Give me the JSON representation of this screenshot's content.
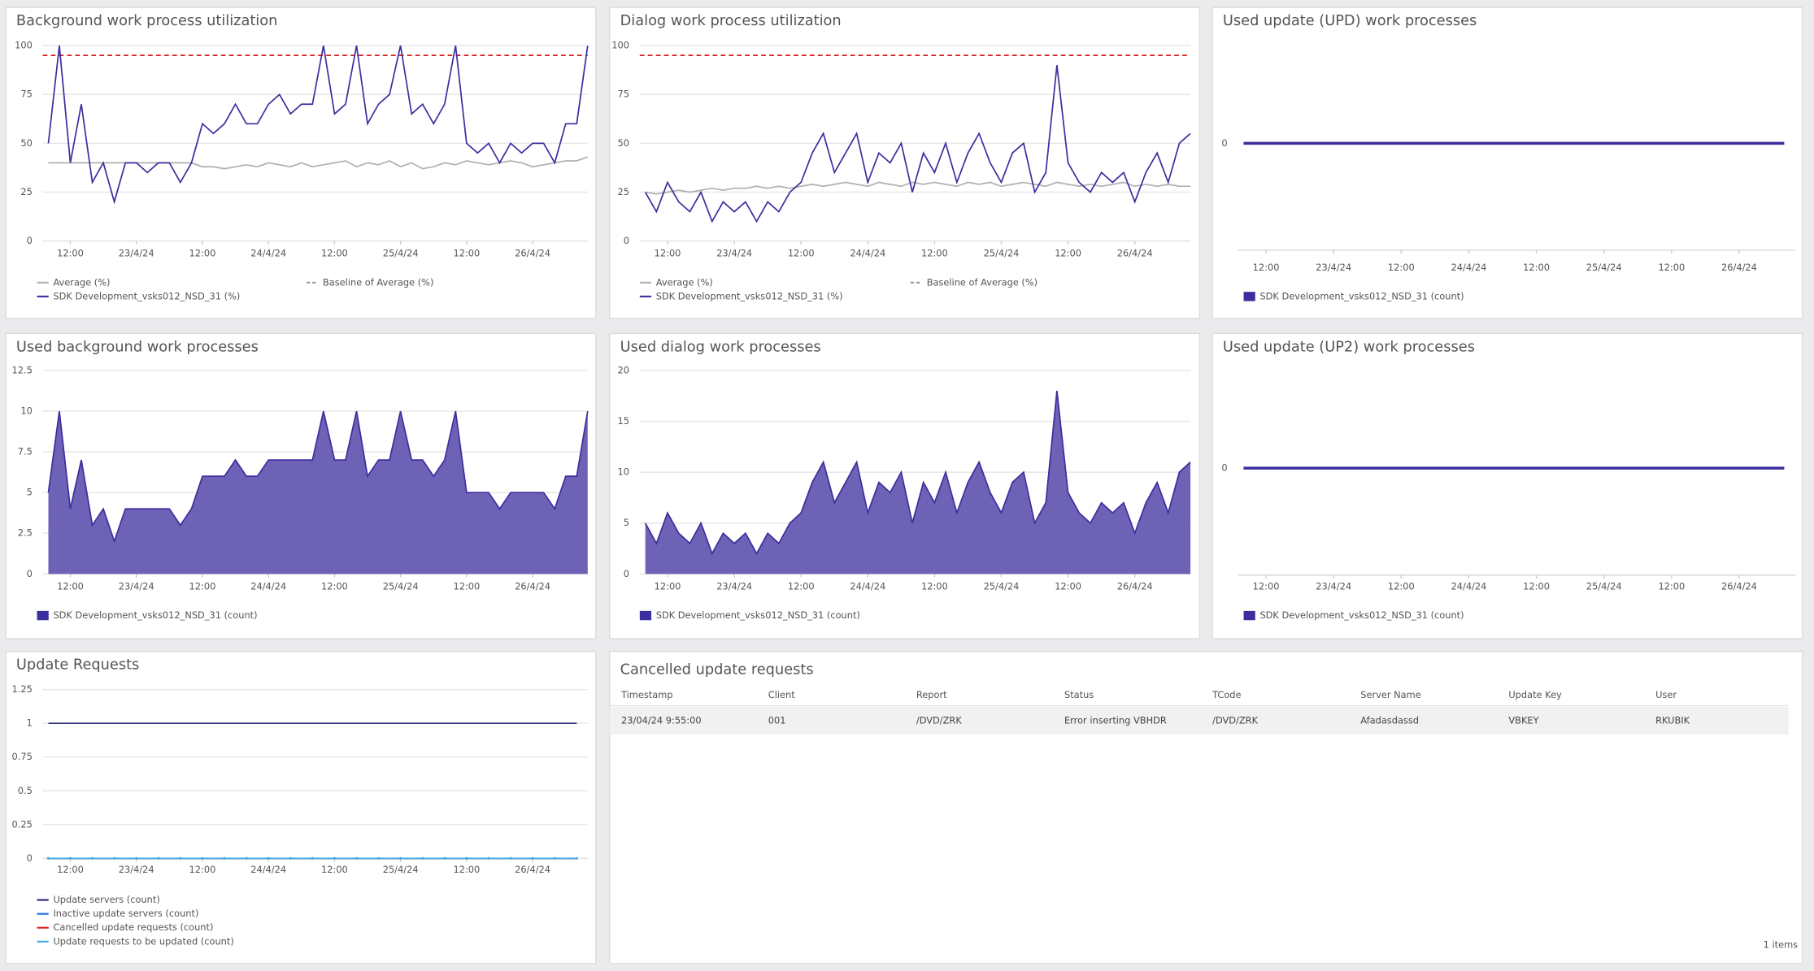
{
  "chart_data": [
    {
      "type": "line",
      "title": "Background work process utilization",
      "x": [
        8,
        10,
        12,
        14,
        16,
        18,
        20,
        22,
        24,
        26,
        28,
        30,
        32,
        34,
        36,
        38,
        40,
        42,
        44,
        46,
        48,
        50,
        52,
        54,
        56,
        58,
        60,
        62,
        64,
        66,
        68,
        70,
        72,
        74,
        76,
        78,
        80,
        82,
        84,
        86,
        88,
        90,
        92,
        94,
        96,
        98,
        100,
        102,
        104,
        106
      ],
      "xlim": [
        7,
        106
      ],
      "xticks": [
        {
          "value": 12,
          "label": "12:00"
        },
        {
          "value": 24,
          "label": "23/4/24"
        },
        {
          "value": 36,
          "label": "12:00"
        },
        {
          "value": 48,
          "label": "24/4/24"
        },
        {
          "value": 60,
          "label": "12:00"
        },
        {
          "value": 72,
          "label": "25/4/24"
        },
        {
          "value": 84,
          "label": "12:00"
        },
        {
          "value": 96,
          "label": "26/4/24"
        }
      ],
      "ylim": [
        0,
        100
      ],
      "yticks": [
        0,
        25,
        50,
        75,
        100
      ],
      "grid": true,
      "threshold": {
        "value": 95,
        "color": "#d81e1e"
      },
      "series": [
        {
          "name": "Average (%)",
          "color": "#b0b0b0",
          "values": [
            40,
            40,
            40,
            40,
            40,
            40,
            40,
            40,
            40,
            40,
            40,
            40,
            40,
            40,
            38,
            38,
            37,
            38,
            39,
            38,
            40,
            39,
            38,
            40,
            38,
            39,
            40,
            41,
            38,
            40,
            39,
            41,
            38,
            40,
            37,
            38,
            40,
            39,
            41,
            40,
            39,
            40,
            41,
            40,
            38,
            39,
            40,
            41,
            41,
            43
          ]
        },
        {
          "name": "Baseline of Average (%)",
          "color": "#999999",
          "dashed": true
        },
        {
          "name": "SDK Development_vsks012_NSD_31 (%)",
          "color": "#3b2e9e",
          "values": [
            50,
            100,
            40,
            70,
            30,
            40,
            20,
            40,
            40,
            35,
            40,
            40,
            30,
            40,
            60,
            55,
            60,
            70,
            60,
            60,
            70,
            75,
            65,
            70,
            70,
            100,
            65,
            70,
            100,
            60,
            70,
            75,
            100,
            65,
            70,
            60,
            70,
            100,
            50,
            45,
            50,
            40,
            50,
            45,
            50,
            50,
            40,
            60,
            60,
            100
          ]
        }
      ]
    },
    {
      "type": "line",
      "title": "Dialog work process utilization",
      "x": [
        8,
        10,
        12,
        14,
        16,
        18,
        20,
        22,
        24,
        26,
        28,
        30,
        32,
        34,
        36,
        38,
        40,
        42,
        44,
        46,
        48,
        50,
        52,
        54,
        56,
        58,
        60,
        62,
        64,
        66,
        68,
        70,
        72,
        74,
        76,
        78,
        80,
        82,
        84,
        86,
        88,
        90,
        92,
        94,
        96,
        98,
        100,
        102,
        104,
        106
      ],
      "xlim": [
        7,
        106
      ],
      "xticks": [
        {
          "value": 12,
          "label": "12:00"
        },
        {
          "value": 24,
          "label": "23/4/24"
        },
        {
          "value": 36,
          "label": "12:00"
        },
        {
          "value": 48,
          "label": "24/4/24"
        },
        {
          "value": 60,
          "label": "12:00"
        },
        {
          "value": 72,
          "label": "25/4/24"
        },
        {
          "value": 84,
          "label": "12:00"
        },
        {
          "value": 96,
          "label": "26/4/24"
        }
      ],
      "ylim": [
        0,
        100
      ],
      "yticks": [
        0,
        25,
        50,
        75,
        100
      ],
      "grid": true,
      "threshold": {
        "value": 95,
        "color": "#d81e1e"
      },
      "series": [
        {
          "name": "Average (%)",
          "color": "#b0b0b0",
          "values": [
            25,
            24,
            25,
            26,
            25,
            26,
            27,
            26,
            27,
            27,
            28,
            27,
            28,
            27,
            28,
            29,
            28,
            29,
            30,
            29,
            28,
            30,
            29,
            28,
            30,
            29,
            30,
            29,
            28,
            30,
            29,
            30,
            28,
            29,
            30,
            29,
            28,
            30,
            29,
            28,
            29,
            28,
            29,
            30,
            28,
            29,
            28,
            29,
            28,
            28
          ]
        },
        {
          "name": "Baseline of Average (%)",
          "color": "#999999",
          "dashed": true
        },
        {
          "name": "SDK Development_vsks012_NSD_31 (%)",
          "color": "#3b2e9e",
          "values": [
            25,
            15,
            30,
            20,
            15,
            25,
            10,
            20,
            15,
            20,
            10,
            20,
            15,
            25,
            30,
            45,
            55,
            35,
            45,
            55,
            30,
            45,
            40,
            50,
            25,
            45,
            35,
            50,
            30,
            45,
            55,
            40,
            30,
            45,
            50,
            25,
            35,
            90,
            40,
            30,
            25,
            35,
            30,
            35,
            20,
            35,
            45,
            30,
            50,
            55
          ]
        }
      ]
    },
    {
      "type": "line",
      "title": "Used update (UPD) work processes",
      "legend_marker": "square",
      "x": [
        8,
        12,
        16,
        20,
        24,
        28,
        32,
        36,
        40,
        44,
        48,
        52,
        56,
        60,
        64,
        68,
        72,
        76,
        80,
        84,
        88,
        92,
        96,
        100,
        104
      ],
      "xlim": [
        7,
        106
      ],
      "xticks": [
        {
          "value": 12,
          "label": "12:00"
        },
        {
          "value": 24,
          "label": "23/4/24"
        },
        {
          "value": 36,
          "label": "12:00"
        },
        {
          "value": 48,
          "label": "24/4/24"
        },
        {
          "value": 60,
          "label": "12:00"
        },
        {
          "value": 72,
          "label": "25/4/24"
        },
        {
          "value": 84,
          "label": "12:00"
        },
        {
          "value": 96,
          "label": "26/4/24"
        }
      ],
      "ylim": [
        -1,
        1
      ],
      "yticks": [
        0
      ],
      "grid": false,
      "series": [
        {
          "name": "SDK Development_vsks012_NSD_31 (count)",
          "color": "#3b2e9e",
          "values": [
            0,
            0,
            0,
            0,
            0,
            0,
            0,
            0,
            0,
            0,
            0,
            0,
            0,
            0,
            0,
            0,
            0,
            0,
            0,
            0,
            0,
            0,
            0,
            0,
            0
          ]
        }
      ]
    },
    {
      "type": "area",
      "title": "Used background work processes",
      "x": [
        8,
        10,
        12,
        14,
        16,
        18,
        20,
        22,
        24,
        26,
        28,
        30,
        32,
        34,
        36,
        38,
        40,
        42,
        44,
        46,
        48,
        50,
        52,
        54,
        56,
        58,
        60,
        62,
        64,
        66,
        68,
        70,
        72,
        74,
        76,
        78,
        80,
        82,
        84,
        86,
        88,
        90,
        92,
        94,
        96,
        98,
        100,
        102,
        104,
        106
      ],
      "xlim": [
        7,
        106
      ],
      "xticks": [
        {
          "value": 12,
          "label": "12:00"
        },
        {
          "value": 24,
          "label": "23/4/24"
        },
        {
          "value": 36,
          "label": "12:00"
        },
        {
          "value": 48,
          "label": "24/4/24"
        },
        {
          "value": 60,
          "label": "12:00"
        },
        {
          "value": 72,
          "label": "25/4/24"
        },
        {
          "value": 84,
          "label": "12:00"
        },
        {
          "value": 96,
          "label": "26/4/24"
        }
      ],
      "ylim": [
        0,
        12.5
      ],
      "yticks": [
        0,
        2.5,
        5,
        7.5,
        10,
        12.5
      ],
      "grid": true,
      "series": [
        {
          "name": "SDK Development_vsks012_NSD_31 (count)",
          "color": "#3b2e9e",
          "fill": "#6e62b6",
          "values": [
            5,
            10,
            4,
            7,
            3,
            4,
            2,
            4,
            4,
            4,
            4,
            4,
            3,
            4,
            6,
            6,
            6,
            7,
            6,
            6,
            7,
            7,
            7,
            7,
            7,
            10,
            7,
            7,
            10,
            6,
            7,
            7,
            10,
            7,
            7,
            6,
            7,
            10,
            5,
            5,
            5,
            4,
            5,
            5,
            5,
            5,
            4,
            6,
            6,
            10
          ]
        }
      ]
    },
    {
      "type": "area",
      "title": "Used dialog work processes",
      "x": [
        8,
        10,
        12,
        14,
        16,
        18,
        20,
        22,
        24,
        26,
        28,
        30,
        32,
        34,
        36,
        38,
        40,
        42,
        44,
        46,
        48,
        50,
        52,
        54,
        56,
        58,
        60,
        62,
        64,
        66,
        68,
        70,
        72,
        74,
        76,
        78,
        80,
        82,
        84,
        86,
        88,
        90,
        92,
        94,
        96,
        98,
        100,
        102,
        104,
        106
      ],
      "xlim": [
        7,
        106
      ],
      "xticks": [
        {
          "value": 12,
          "label": "12:00"
        },
        {
          "value": 24,
          "label": "23/4/24"
        },
        {
          "value": 36,
          "label": "12:00"
        },
        {
          "value": 48,
          "label": "24/4/24"
        },
        {
          "value": 60,
          "label": "12:00"
        },
        {
          "value": 72,
          "label": "25/4/24"
        },
        {
          "value": 84,
          "label": "12:00"
        },
        {
          "value": 96,
          "label": "26/4/24"
        }
      ],
      "ylim": [
        0,
        20
      ],
      "yticks": [
        0,
        5,
        10,
        15,
        20
      ],
      "grid": true,
      "series": [
        {
          "name": "SDK Development_vsks012_NSD_31 (count)",
          "color": "#3b2e9e",
          "fill": "#6e62b6",
          "values": [
            5,
            3,
            6,
            4,
            3,
            5,
            2,
            4,
            3,
            4,
            2,
            4,
            3,
            5,
            6,
            9,
            11,
            7,
            9,
            11,
            6,
            9,
            8,
            10,
            5,
            9,
            7,
            10,
            6,
            9,
            11,
            8,
            6,
            9,
            10,
            5,
            7,
            18,
            8,
            6,
            5,
            7,
            6,
            7,
            4,
            7,
            9,
            6,
            10,
            11
          ]
        }
      ]
    },
    {
      "type": "line",
      "title": "Used update (UP2) work processes",
      "legend_marker": "square",
      "x": [
        8,
        12,
        16,
        20,
        24,
        28,
        32,
        36,
        40,
        44,
        48,
        52,
        56,
        60,
        64,
        68,
        72,
        76,
        80,
        84,
        88,
        92,
        96,
        100,
        104
      ],
      "xlim": [
        7,
        106
      ],
      "xticks": [
        {
          "value": 12,
          "label": "12:00"
        },
        {
          "value": 24,
          "label": "23/4/24"
        },
        {
          "value": 36,
          "label": "12:00"
        },
        {
          "value": 48,
          "label": "24/4/24"
        },
        {
          "value": 60,
          "label": "12:00"
        },
        {
          "value": 72,
          "label": "25/4/24"
        },
        {
          "value": 84,
          "label": "12:00"
        },
        {
          "value": 96,
          "label": "26/4/24"
        }
      ],
      "ylim": [
        -1,
        1
      ],
      "yticks": [
        0
      ],
      "grid": false,
      "series": [
        {
          "name": "SDK Development_vsks012_NSD_31 (count)",
          "color": "#3b2e9e",
          "values": [
            0,
            0,
            0,
            0,
            0,
            0,
            0,
            0,
            0,
            0,
            0,
            0,
            0,
            0,
            0,
            0,
            0,
            0,
            0,
            0,
            0,
            0,
            0,
            0,
            0
          ]
        }
      ]
    },
    {
      "type": "line",
      "title": "Update Requests",
      "x": [
        8,
        12,
        16,
        20,
        24,
        28,
        32,
        36,
        40,
        44,
        48,
        52,
        56,
        60,
        64,
        68,
        72,
        76,
        80,
        84,
        88,
        92,
        96,
        100,
        104
      ],
      "xlim": [
        7,
        106
      ],
      "xticks": [
        {
          "value": 12,
          "label": "12:00"
        },
        {
          "value": 24,
          "label": "23/4/24"
        },
        {
          "value": 36,
          "label": "12:00"
        },
        {
          "value": 48,
          "label": "24/4/24"
        },
        {
          "value": 60,
          "label": "12:00"
        },
        {
          "value": 72,
          "label": "25/4/24"
        },
        {
          "value": 84,
          "label": "12:00"
        },
        {
          "value": 96,
          "label": "26/4/24"
        }
      ],
      "ylim": [
        0,
        1.25
      ],
      "yticks": [
        0,
        0.25,
        0.5,
        0.75,
        1,
        1.25
      ],
      "grid": true,
      "series": [
        {
          "name": "Update servers (count)",
          "color": "#2a2a7a",
          "values": [
            1,
            1,
            1,
            1,
            1,
            1,
            1,
            1,
            1,
            1,
            1,
            1,
            1,
            1,
            1,
            1,
            1,
            1,
            1,
            1,
            1,
            1,
            1,
            1,
            1
          ]
        },
        {
          "name": "Inactive update servers (count)",
          "color": "#1f6fd6",
          "values": [
            0,
            0,
            0,
            0,
            0,
            0,
            0,
            0,
            0,
            0,
            0,
            0,
            0,
            0,
            0,
            0,
            0,
            0,
            0,
            0,
            0,
            0,
            0,
            0,
            0
          ]
        },
        {
          "name": "Cancelled update requests (count)",
          "color": "#e02020",
          "values": [
            0,
            0,
            0,
            0,
            0,
            0,
            0,
            0,
            0,
            0,
            0,
            0,
            0,
            0,
            0,
            0,
            0,
            0,
            0,
            0,
            0,
            0,
            0,
            0,
            0
          ]
        },
        {
          "name": "Update requests to be updated (count)",
          "color": "#3fa9e6",
          "markers": true,
          "values": [
            0,
            0,
            0,
            0,
            0,
            0,
            0,
            0,
            0,
            0,
            0,
            0,
            0,
            0,
            0,
            0,
            0,
            0,
            0,
            0,
            0,
            0,
            0,
            0,
            0
          ]
        }
      ]
    }
  ],
  "table": {
    "title": "Cancelled update requests",
    "columns": [
      "Timestamp",
      "Client",
      "Report",
      "Status",
      "TCode",
      "Server Name",
      "Update Key",
      "User"
    ],
    "rows": [
      [
        "23/04/24 9:55:00",
        "001",
        "/DVD/ZRK",
        "Error inserting VBHDR",
        "/DVD/ZRK",
        "Afadasdassd",
        "VBKEY",
        "RKUBIK"
      ]
    ],
    "footer": "1 items"
  }
}
